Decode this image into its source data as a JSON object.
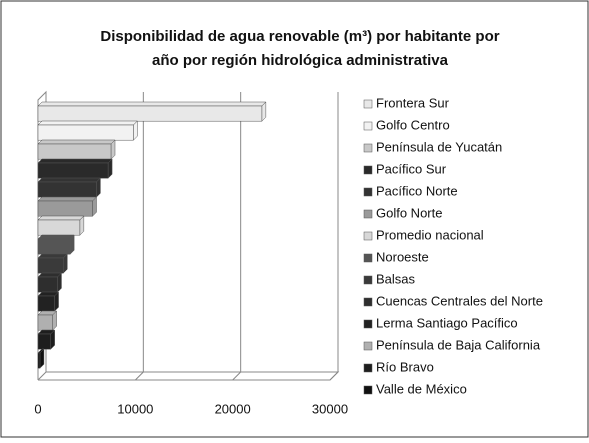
{
  "chart_data": {
    "type": "bar",
    "orientation": "horizontal",
    "title": [
      "Disponibilidad de agua renovable (m³) por habitante por",
      "año por región hidrológica administrativa"
    ],
    "categories": [
      "Frontera Sur",
      "Golfo Centro",
      "Península de Yucatán",
      "Pacífico Sur",
      "Pacífico Norte",
      "Golfo Norte",
      "Promedio nacional",
      "Noroeste",
      "Balsas",
      "Cuencas Centrales del Norte",
      "Lerma Santiago Pacífico",
      "Península de Baja California",
      "Río Bravo",
      "Valle de México"
    ],
    "values": [
      23000,
      9800,
      7500,
      7200,
      6000,
      5600,
      4300,
      3300,
      2600,
      2000,
      1700,
      1500,
      1300,
      200
    ],
    "colors": [
      "#e8e8e8",
      "#f2f2f2",
      "#c8c8c8",
      "#2a2a2a",
      "#333333",
      "#9a9a9a",
      "#d8d8d8",
      "#555555",
      "#3a3a3a",
      "#2e2e2e",
      "#222222",
      "#b0b0b0",
      "#1e1e1e",
      "#111111"
    ],
    "xlim": [
      0,
      30000
    ],
    "xticks": [
      0,
      10000,
      20000,
      30000
    ],
    "grid": true
  }
}
